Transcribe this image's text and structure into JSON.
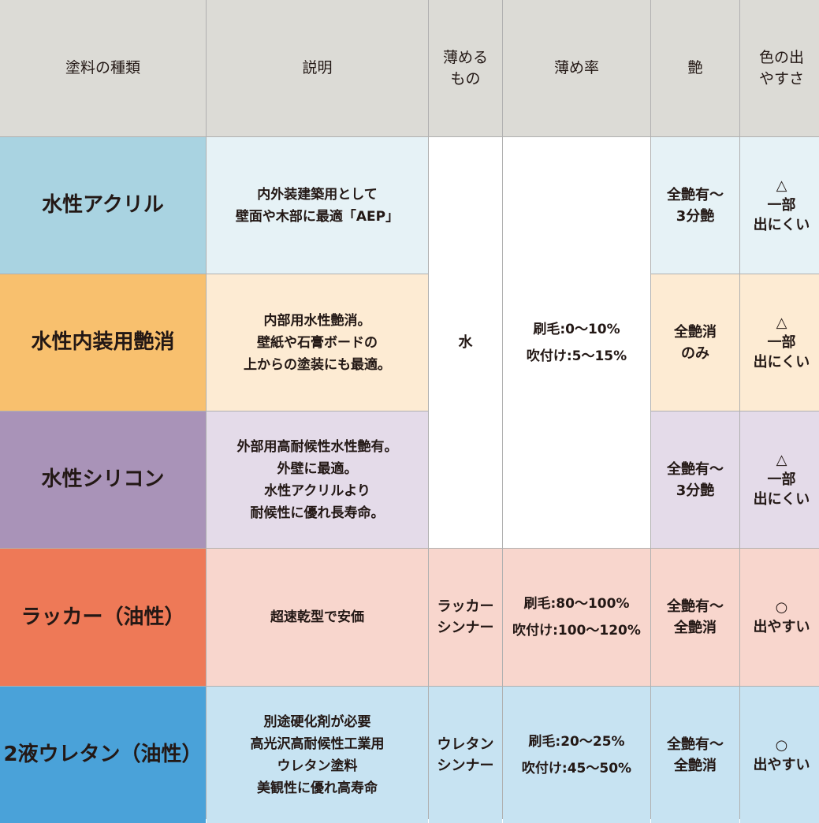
{
  "headers": [
    "塗料の種類",
    "説明",
    "薄める\nもの",
    "薄め率",
    "艶",
    "色の出\nやすさ"
  ],
  "rows": [
    {
      "name": "水性アクリル",
      "desc": "内外装建築用として\n壁面や木部に最適「AEP」",
      "gloss": "全艶有〜\n3分艶",
      "color": "△\n一部\n出にくい",
      "name_bg": "#a9d3e1",
      "cell_bg": "#e6f2f6"
    },
    {
      "name": "水性内装用艶消",
      "desc": "内部用水性艶消。\n壁紙や石膏ボードの\n上からの塗装にも最適。",
      "gloss": "全艶消\nのみ",
      "color": "△\n一部\n出にくい",
      "name_bg": "#f8c06e",
      "cell_bg": "#fdebd3"
    },
    {
      "name": "水性シリコン",
      "desc": "外部用高耐候性水性艶有。\n外壁に最適。\n水性アクリルより\n耐候性に優れ長寿命。",
      "gloss": "全艶有〜\n3分艶",
      "color": "△\n一部\n出にくい",
      "name_bg": "#a993b8",
      "cell_bg": "#e4dbe9"
    },
    {
      "name": "ラッカー（油性）",
      "desc": "超速乾型で安価",
      "thinner": "ラッカー\nシンナー",
      "rate": "刷毛:80〜100%\n吹付け:100〜120%",
      "gloss": "全艶有〜\n全艶消",
      "color": "○\n出やすい",
      "name_bg": "#ee7957",
      "cell_bg": "#f8d6cd"
    },
    {
      "name": "2液ウレタン（油性）",
      "desc": "別途硬化剤が必要\n高光沢高耐候性工業用\nウレタン塗料\n美観性に優れ高寿命",
      "thinner": "ウレタン\nシンナー",
      "rate": "刷毛:20〜25%\n吹付け:45〜50%",
      "gloss": "全艶有〜\n全艶消",
      "color": "○\n出やすい",
      "name_bg": "#4aa2d9",
      "cell_bg": "#c7e3f2"
    }
  ],
  "water_group": {
    "thinner": "水",
    "rate": "刷毛:0〜10%\n吹付け:5〜15%"
  }
}
